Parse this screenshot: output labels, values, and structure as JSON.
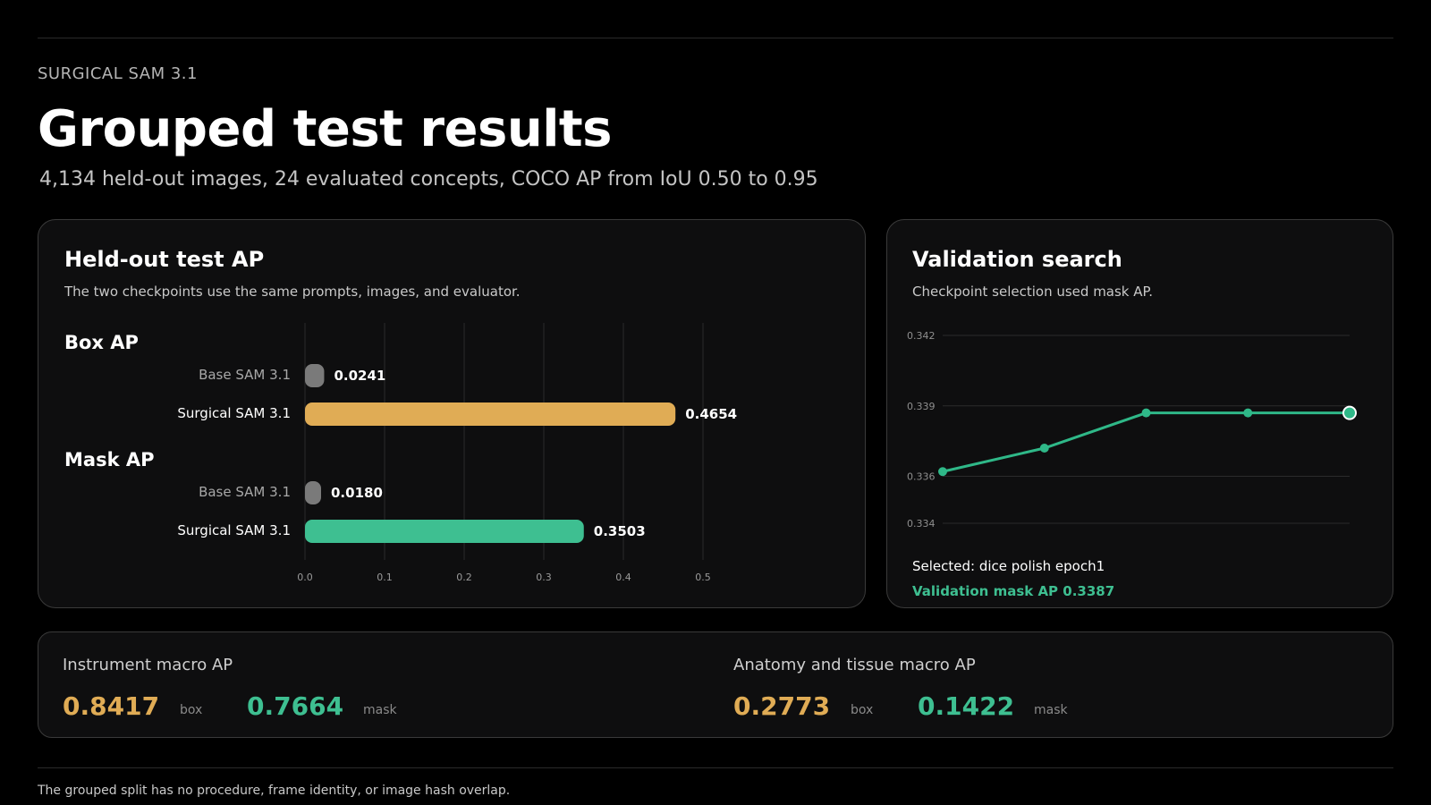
{
  "header": {
    "eyebrow": "SURGICAL SAM 3.1",
    "title": "Grouped test results",
    "subtitle": "4,134 held-out images, 24 evaluated concepts, COCO AP from IoU 0.50 to 0.95"
  },
  "colors": {
    "box": "#e0ac55",
    "mask": "#3ebf91",
    "base": "#7a7a7a",
    "line": "#2fb888"
  },
  "test_card": {
    "title": "Held-out test AP",
    "description": "The two checkpoints use the same prompts, images, and evaluator."
  },
  "validation_card": {
    "title": "Validation search",
    "description": "Checkpoint selection used mask AP.",
    "selected": "Selected: dice polish epoch1",
    "selected_ap": "Validation mask AP 0.3387"
  },
  "summary": {
    "instrument": {
      "title": "Instrument macro AP",
      "box_value": "0.8417",
      "box_unit": "box",
      "mask_value": "0.7664",
      "mask_unit": "mask"
    },
    "anatomy": {
      "title": "Anatomy and tissue macro AP",
      "box_value": "0.2773",
      "box_unit": "box",
      "mask_value": "0.1422",
      "mask_unit": "mask"
    }
  },
  "footnote": "The grouped split has no procedure, frame identity, or image hash overlap.",
  "chart_data": [
    {
      "type": "bar",
      "orientation": "horizontal",
      "groups": [
        {
          "name": "Box AP",
          "bars": [
            {
              "label": "Base SAM 3.1",
              "value": 0.0241,
              "display": "0.0241"
            },
            {
              "label": "Surgical SAM 3.1",
              "value": 0.4654,
              "display": "0.4654"
            }
          ]
        },
        {
          "name": "Mask AP",
          "bars": [
            {
              "label": "Base SAM 3.1",
              "value": 0.018,
              "display": "0.0180"
            },
            {
              "label": "Surgical SAM 3.1",
              "value": 0.3503,
              "display": "0.3503"
            }
          ]
        }
      ],
      "xlim": [
        0,
        0.5
      ],
      "xticks": [
        "0.0",
        "0.1",
        "0.2",
        "0.3",
        "0.4",
        "0.5"
      ],
      "grid": true
    },
    {
      "type": "line",
      "series": [
        {
          "values": [
            0.3362,
            0.3372,
            0.3387,
            0.3387,
            0.3387
          ]
        }
      ],
      "ylim": [
        0.334,
        0.342
      ],
      "yticks": [
        "0.342",
        "0.339",
        "0.336",
        "0.334"
      ],
      "grid": true,
      "highlight_last": true
    }
  ]
}
